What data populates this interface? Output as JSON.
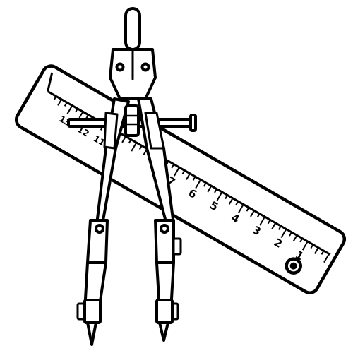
{
  "ruler": {
    "numbers": [
      "13",
      "12",
      "11",
      "7",
      "6",
      "5",
      "4",
      "3",
      "2",
      "1"
    ]
  },
  "colors": {
    "ink": "#000000",
    "paper": "#ffffff"
  },
  "icons": {
    "ruler": "ruler-icon",
    "compass": "drawing-compass-icon"
  }
}
